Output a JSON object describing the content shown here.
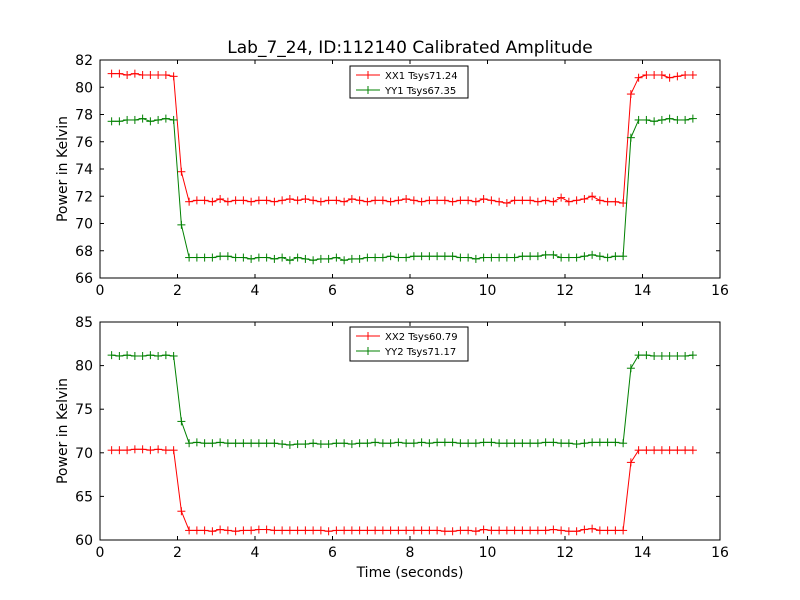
{
  "chart_data": [
    {
      "type": "line",
      "title": "Lab_7_24, ID:112140 Calibrated Amplitude",
      "xlabel": "",
      "ylabel": "Power in Kelvin",
      "xlim": [
        0,
        16
      ],
      "ylim": [
        66,
        82
      ],
      "xticks": [
        "0",
        "2",
        "4",
        "6",
        "8",
        "10",
        "12",
        "14",
        "16"
      ],
      "yticks": [
        "66",
        "68",
        "70",
        "72",
        "74",
        "76",
        "78",
        "80",
        "82"
      ],
      "grid": false,
      "legend_position": "top-center",
      "x": [
        0.3,
        0.5,
        0.7,
        0.9,
        1.1,
        1.3,
        1.5,
        1.7,
        1.9,
        2.1,
        2.3,
        2.5,
        2.7,
        2.9,
        3.1,
        3.3,
        3.5,
        3.7,
        3.9,
        4.1,
        4.3,
        4.5,
        4.7,
        4.9,
        5.1,
        5.3,
        5.5,
        5.7,
        5.9,
        6.1,
        6.3,
        6.5,
        6.7,
        6.9,
        7.1,
        7.3,
        7.5,
        7.7,
        7.9,
        8.1,
        8.3,
        8.5,
        8.7,
        8.9,
        9.1,
        9.3,
        9.5,
        9.7,
        9.9,
        10.1,
        10.3,
        10.5,
        10.7,
        10.9,
        11.1,
        11.3,
        11.5,
        11.7,
        11.9,
        12.1,
        12.3,
        12.5,
        12.7,
        12.9,
        13.1,
        13.3,
        13.5,
        13.7,
        13.9,
        14.1,
        14.3,
        14.5,
        14.7,
        14.9,
        15.1,
        15.3
      ],
      "series": [
        {
          "name": "XX1 Tsys71.24",
          "color": "#ff0000",
          "values": [
            81.0,
            81.0,
            80.9,
            81.0,
            80.9,
            80.9,
            80.9,
            80.9,
            80.8,
            73.8,
            71.6,
            71.7,
            71.7,
            71.6,
            71.8,
            71.6,
            71.7,
            71.7,
            71.6,
            71.7,
            71.7,
            71.6,
            71.7,
            71.8,
            71.7,
            71.8,
            71.7,
            71.6,
            71.7,
            71.7,
            71.6,
            71.8,
            71.7,
            71.6,
            71.7,
            71.7,
            71.6,
            71.7,
            71.8,
            71.7,
            71.6,
            71.7,
            71.7,
            71.7,
            71.6,
            71.7,
            71.7,
            71.6,
            71.8,
            71.7,
            71.6,
            71.5,
            71.7,
            71.7,
            71.7,
            71.6,
            71.7,
            71.6,
            71.9,
            71.6,
            71.7,
            71.8,
            72.0,
            71.7,
            71.6,
            71.6,
            71.5,
            79.5,
            80.7,
            80.9,
            80.9,
            80.9,
            80.7,
            80.8,
            80.9,
            80.9
          ]
        },
        {
          "name": "YY1 Tsys67.35",
          "color": "#008000",
          "values": [
            77.5,
            77.5,
            77.6,
            77.6,
            77.7,
            77.5,
            77.6,
            77.7,
            77.6,
            69.9,
            67.5,
            67.5,
            67.5,
            67.5,
            67.6,
            67.6,
            67.5,
            67.5,
            67.4,
            67.5,
            67.5,
            67.4,
            67.5,
            67.3,
            67.5,
            67.4,
            67.3,
            67.4,
            67.4,
            67.5,
            67.3,
            67.4,
            67.4,
            67.5,
            67.5,
            67.5,
            67.6,
            67.5,
            67.5,
            67.6,
            67.6,
            67.6,
            67.6,
            67.6,
            67.6,
            67.5,
            67.5,
            67.4,
            67.5,
            67.5,
            67.5,
            67.5,
            67.5,
            67.6,
            67.6,
            67.6,
            67.7,
            67.7,
            67.5,
            67.5,
            67.5,
            67.6,
            67.7,
            67.6,
            67.5,
            67.6,
            67.6,
            76.3,
            77.6,
            77.6,
            77.5,
            77.6,
            77.7,
            77.6,
            77.6,
            77.7
          ]
        }
      ]
    },
    {
      "type": "line",
      "title": "",
      "xlabel": "Time (seconds)",
      "ylabel": "Power in Kelvin",
      "xlim": [
        0,
        16
      ],
      "ylim": [
        60,
        85
      ],
      "xticks": [
        "0",
        "2",
        "4",
        "6",
        "8",
        "10",
        "12",
        "14",
        "16"
      ],
      "yticks": [
        "60",
        "65",
        "70",
        "75",
        "80",
        "85"
      ],
      "grid": false,
      "legend_position": "top-center",
      "x": [
        0.3,
        0.5,
        0.7,
        0.9,
        1.1,
        1.3,
        1.5,
        1.7,
        1.9,
        2.1,
        2.3,
        2.5,
        2.7,
        2.9,
        3.1,
        3.3,
        3.5,
        3.7,
        3.9,
        4.1,
        4.3,
        4.5,
        4.7,
        4.9,
        5.1,
        5.3,
        5.5,
        5.7,
        5.9,
        6.1,
        6.3,
        6.5,
        6.7,
        6.9,
        7.1,
        7.3,
        7.5,
        7.7,
        7.9,
        8.1,
        8.3,
        8.5,
        8.7,
        8.9,
        9.1,
        9.3,
        9.5,
        9.7,
        9.9,
        10.1,
        10.3,
        10.5,
        10.7,
        10.9,
        11.1,
        11.3,
        11.5,
        11.7,
        11.9,
        12.1,
        12.3,
        12.5,
        12.7,
        12.9,
        13.1,
        13.3,
        13.5,
        13.7,
        13.9,
        14.1,
        14.3,
        14.5,
        14.7,
        14.9,
        15.1,
        15.3
      ],
      "series": [
        {
          "name": "XX2 Tsys60.79",
          "color": "#ff0000",
          "values": [
            70.3,
            70.3,
            70.3,
            70.4,
            70.4,
            70.3,
            70.4,
            70.3,
            70.3,
            63.3,
            61.1,
            61.1,
            61.1,
            61.0,
            61.2,
            61.1,
            61.0,
            61.1,
            61.1,
            61.2,
            61.2,
            61.1,
            61.1,
            61.1,
            61.1,
            61.1,
            61.1,
            61.1,
            61.0,
            61.1,
            61.1,
            61.1,
            61.1,
            61.1,
            61.1,
            61.1,
            61.1,
            61.1,
            61.1,
            61.1,
            61.1,
            61.1,
            61.1,
            61.0,
            61.0,
            61.1,
            61.1,
            61.0,
            61.2,
            61.1,
            61.1,
            61.1,
            61.1,
            61.1,
            61.1,
            61.1,
            61.1,
            61.2,
            61.1,
            61.0,
            61.0,
            61.2,
            61.3,
            61.1,
            61.1,
            61.1,
            61.1,
            68.9,
            70.3,
            70.3,
            70.3,
            70.3,
            70.3,
            70.3,
            70.3,
            70.3
          ]
        },
        {
          "name": "YY2 Tsys71.17",
          "color": "#008000",
          "values": [
            81.2,
            81.1,
            81.2,
            81.1,
            81.1,
            81.2,
            81.1,
            81.2,
            81.1,
            73.6,
            71.1,
            71.2,
            71.1,
            71.1,
            71.2,
            71.1,
            71.1,
            71.1,
            71.1,
            71.1,
            71.1,
            71.1,
            71.0,
            70.9,
            71.0,
            71.0,
            71.1,
            71.0,
            71.0,
            71.1,
            71.1,
            71.0,
            71.1,
            71.1,
            71.2,
            71.1,
            71.1,
            71.2,
            71.1,
            71.1,
            71.2,
            71.1,
            71.2,
            71.2,
            71.2,
            71.1,
            71.1,
            71.1,
            71.2,
            71.2,
            71.1,
            71.1,
            71.1,
            71.1,
            71.1,
            71.1,
            71.2,
            71.2,
            71.1,
            71.1,
            71.0,
            71.1,
            71.2,
            71.2,
            71.2,
            71.2,
            71.1,
            79.7,
            81.2,
            81.2,
            81.1,
            81.1,
            81.1,
            81.1,
            81.1,
            81.2
          ]
        }
      ]
    }
  ]
}
